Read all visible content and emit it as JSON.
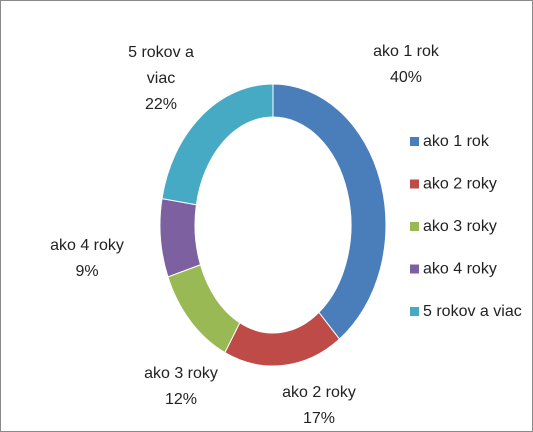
{
  "chart_data": {
    "type": "donut",
    "categories": [
      "ako 1 rok",
      "ako 2 roky",
      "ako 3 roky",
      "ako 4 roky",
      "5 rokov a viac"
    ],
    "values": [
      40,
      17,
      12,
      9,
      22
    ],
    "value_labels": [
      "40%",
      "17%",
      "12%",
      "9%",
      "22%"
    ],
    "colors": [
      "#4a7ebb",
      "#be4b48",
      "#98b954",
      "#7d60a0",
      "#46aac5"
    ],
    "legend": "right"
  }
}
